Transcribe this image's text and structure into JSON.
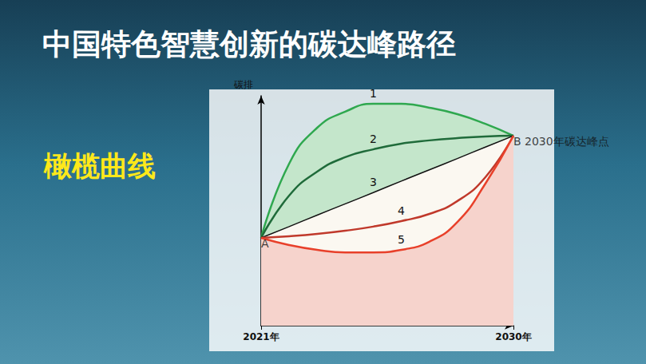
{
  "chart_data": {
    "type": "line",
    "title": "中国特色智慧创新的碳达峰路径",
    "subtitle": "橄榄曲线",
    "y_label": "碳排",
    "x": [
      2021,
      2022,
      2023,
      2024,
      2025,
      2026,
      2027,
      2028,
      2029,
      2030
    ],
    "xlim": [
      2021,
      2030
    ],
    "xticks": [
      {
        "value": 2021,
        "label": "2021年"
      },
      {
        "value": 2030,
        "label": "2030年"
      }
    ],
    "ylim": [
      0,
      100
    ],
    "tick_labels": "x",
    "grid": false,
    "marker": "none",
    "series": [
      {
        "name": "1",
        "color": "#2fa84f",
        "values": [
          38.2,
          70.5,
          86.1,
          93.1,
          96.5,
          96.5,
          94.8,
          92.0,
          87.8,
          82.6
        ]
      },
      {
        "name": "2",
        "color": "#1f6b3a",
        "values": [
          38.2,
          56.6,
          67.0,
          73.3,
          76.7,
          79.2,
          80.6,
          81.6,
          82.3,
          82.6
        ]
      },
      {
        "name": "3",
        "color": "#111111",
        "values": [
          38.2,
          43.1,
          48.1,
          53.0,
          57.9,
          62.9,
          67.8,
          72.7,
          77.7,
          82.6
        ]
      },
      {
        "name": "4",
        "color": "#c0392b",
        "values": [
          38.2,
          38.9,
          39.9,
          41.3,
          43.1,
          45.5,
          48.6,
          54.2,
          64.6,
          82.6
        ]
      },
      {
        "name": "5",
        "color": "#e8402a",
        "values": [
          38.2,
          35.1,
          33.0,
          31.9,
          31.9,
          33.0,
          36.5,
          45.1,
          61.8,
          82.6
        ]
      }
    ],
    "annotations": [
      {
        "text": "A",
        "x": 2021,
        "y": 38.2
      },
      {
        "text": "B 2030年碳达峰点",
        "x": 2030,
        "y": 82.6
      }
    ]
  }
}
